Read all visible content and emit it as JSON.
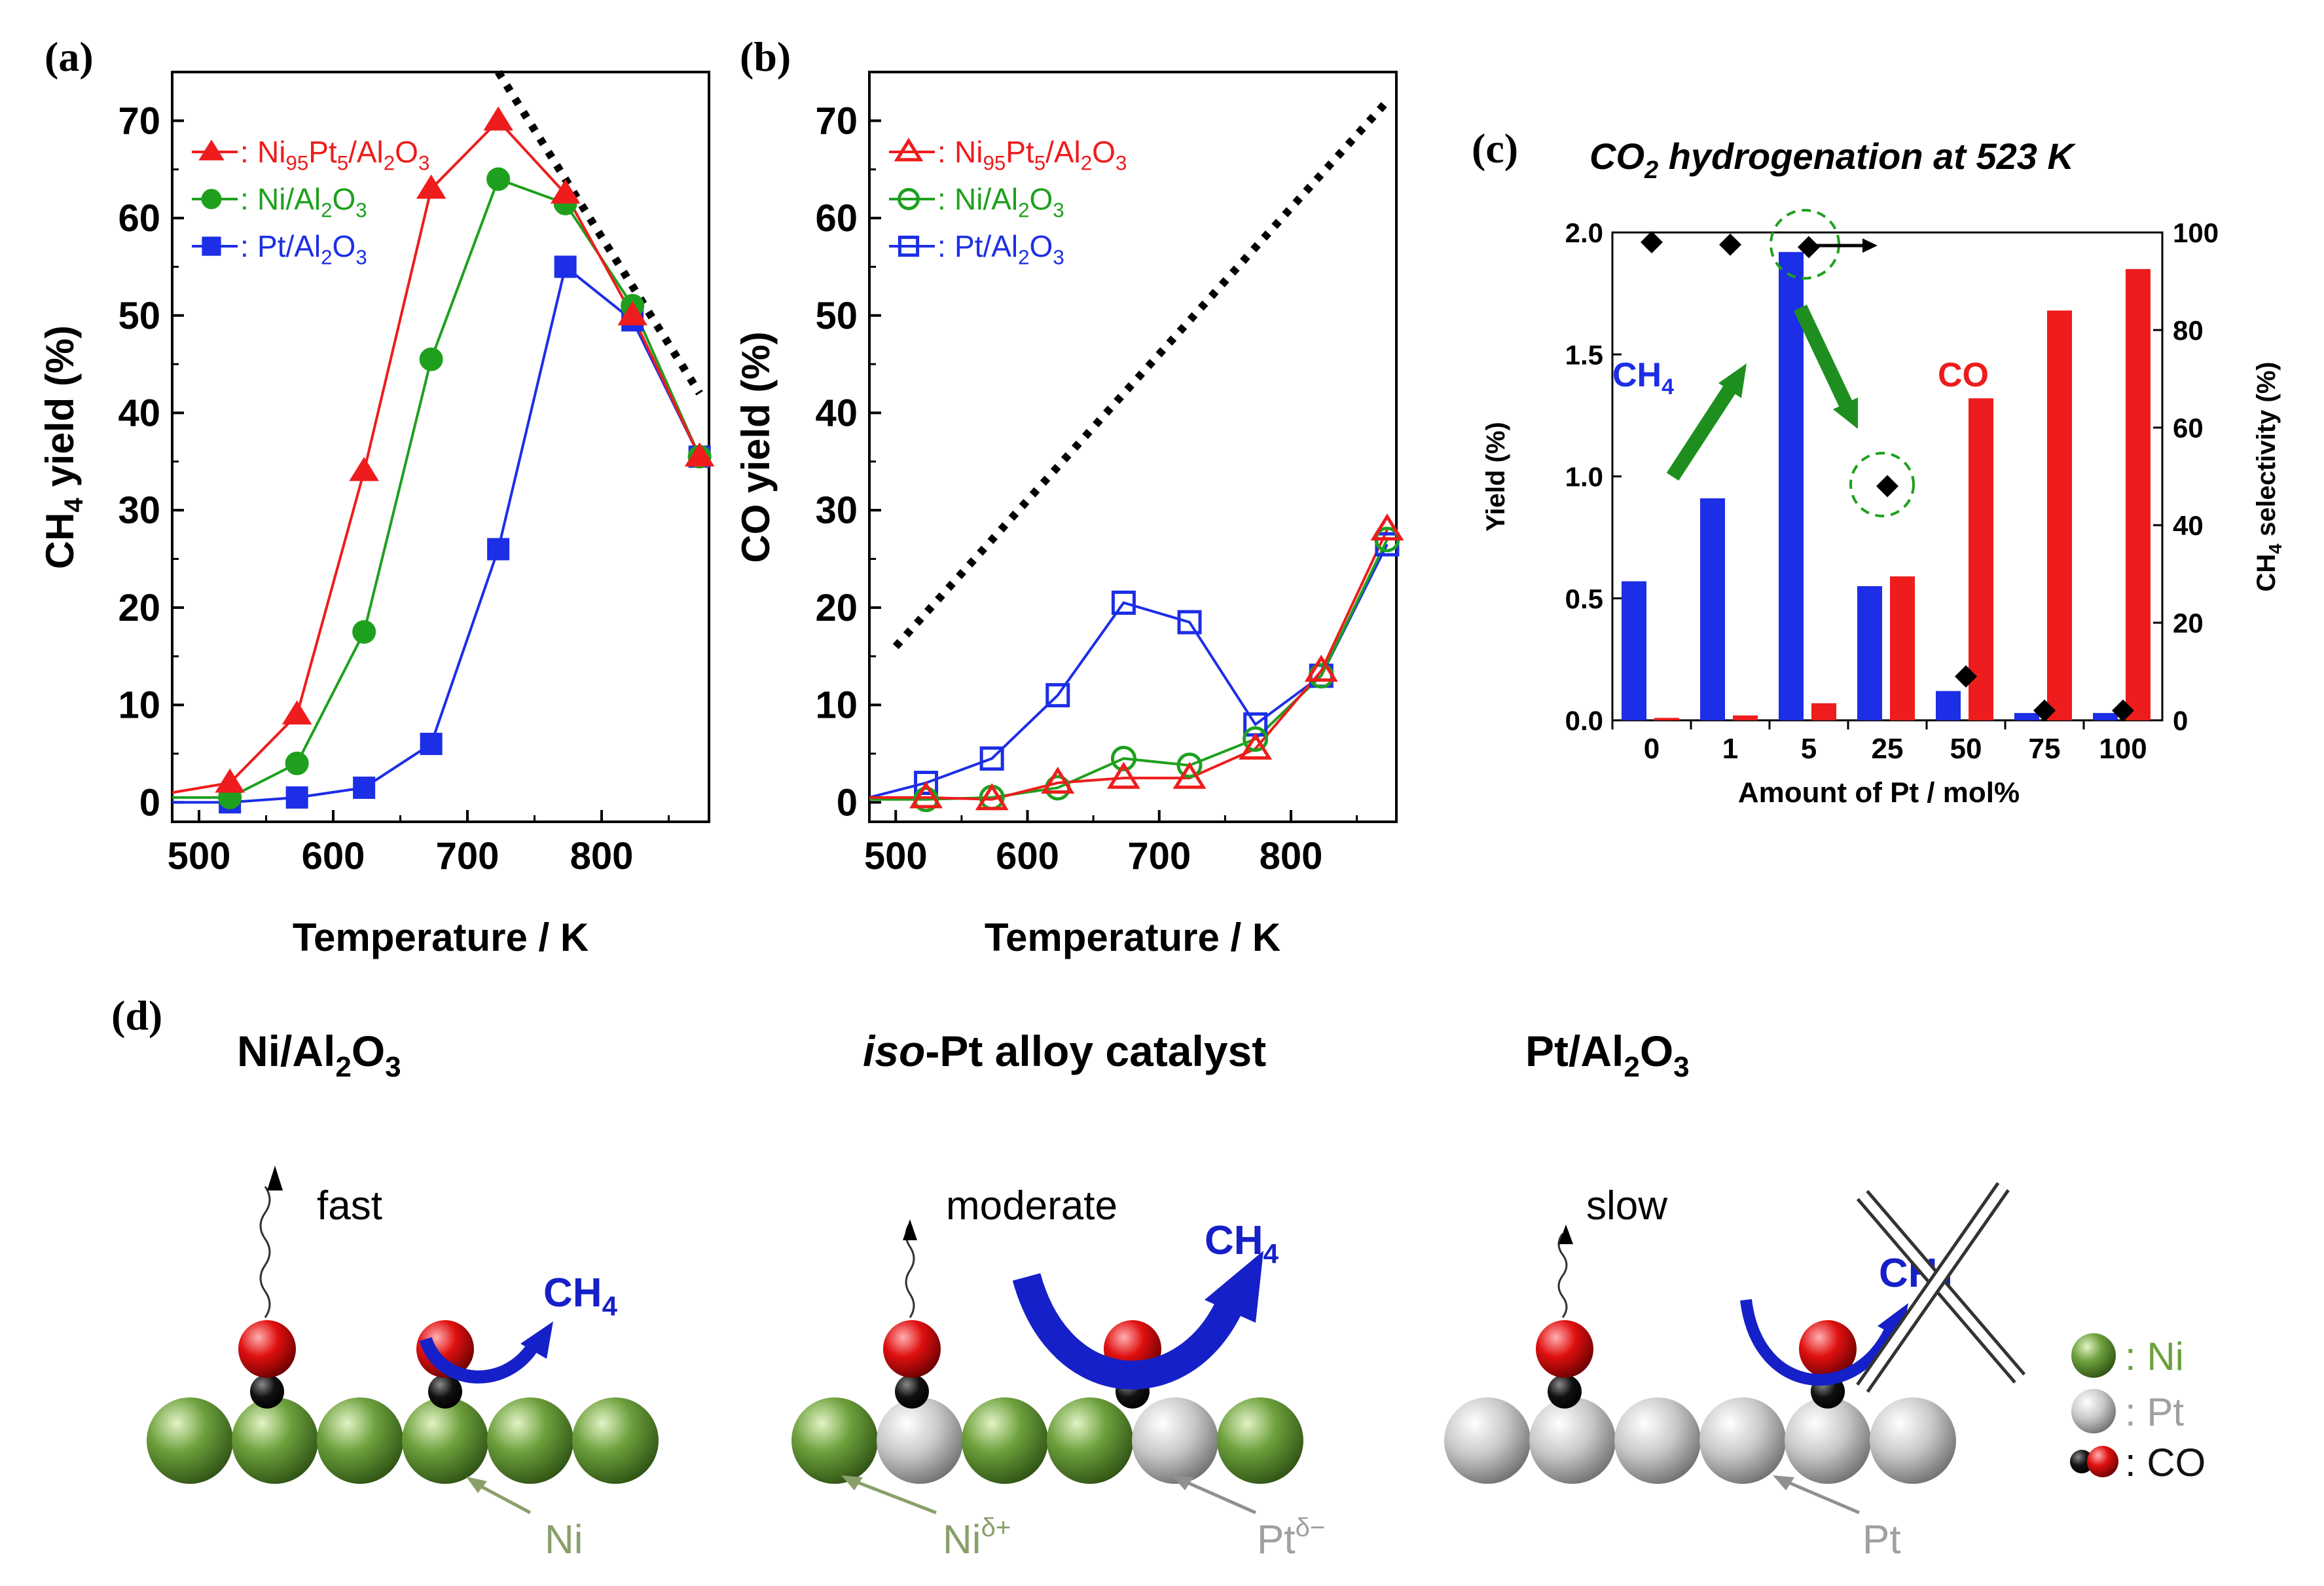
{
  "panel_labels": {
    "a": "(a)",
    "b": "(b)",
    "c": "(c)",
    "d": "(d)"
  },
  "colors": {
    "red": "#ee1c1c",
    "green": "#1ea01e",
    "blue": "#1c2ee6",
    "black": "#111111",
    "ni_bead": "#6da03c",
    "pt_bead": "#c8c8c8"
  },
  "chart_data": [
    {
      "id": "a",
      "type": "line",
      "ylabel_main": "CH",
      "ylabel_sub": "4",
      "ylabel_tail": " yield (%)",
      "xlabel": "Temperature / K",
      "xlim": [
        480,
        880
      ],
      "ylim": [
        -2,
        75
      ],
      "xticks": [
        500,
        600,
        700,
        800
      ],
      "yticks": [
        0,
        10,
        20,
        30,
        40,
        50,
        60,
        70
      ],
      "legend_position": "top-left",
      "series": [
        {
          "name": "Ni95Pt5/Al2O3",
          "marker": "triangle-filled",
          "color": "#ee1c1c",
          "x": [
            523,
            573,
            623,
            673,
            723,
            773,
            823,
            873
          ],
          "y": [
            2,
            9,
            34,
            63,
            70,
            62.5,
            50,
            35.5
          ]
        },
        {
          "name": "Ni/Al2O3",
          "marker": "circle-filled",
          "color": "#1ea01e",
          "x": [
            523,
            573,
            623,
            673,
            723,
            773,
            823,
            873
          ],
          "y": [
            0.5,
            4,
            17.5,
            45.5,
            64,
            61.5,
            51,
            35.5
          ]
        },
        {
          "name": "Pt/Al2O3",
          "marker": "square-filled",
          "color": "#1c2ee6",
          "x": [
            523,
            573,
            623,
            673,
            723,
            773,
            823,
            873
          ],
          "y": [
            0,
            0.5,
            1.5,
            6,
            26,
            55,
            49.5,
            35.5
          ]
        }
      ],
      "reference_line": {
        "x": [
          723,
          873
        ],
        "y": [
          75,
          42
        ]
      }
    },
    {
      "id": "b",
      "type": "line",
      "ylabel": "CO yield (%)",
      "xlabel": "Temperature / K",
      "xlim": [
        480,
        880
      ],
      "ylim": [
        -2,
        75
      ],
      "xticks": [
        500,
        600,
        700,
        800
      ],
      "yticks": [
        0,
        10,
        20,
        30,
        40,
        50,
        60,
        70
      ],
      "legend_position": "top-left",
      "series": [
        {
          "name": "Ni95Pt5/Al2O3",
          "marker": "triangle-open",
          "color": "#ee1c1c",
          "x": [
            523,
            573,
            623,
            673,
            723,
            773,
            823,
            873
          ],
          "y": [
            0.5,
            0.3,
            2,
            2.5,
            2.5,
            5.5,
            13.5,
            28
          ]
        },
        {
          "name": "Ni/Al2O3",
          "marker": "circle-open",
          "color": "#1ea01e",
          "x": [
            523,
            573,
            623,
            673,
            723,
            773,
            823,
            873
          ],
          "y": [
            0.3,
            0.5,
            1.5,
            4.5,
            3.8,
            6.5,
            13,
            27
          ]
        },
        {
          "name": "Pt/Al2O3",
          "marker": "square-open",
          "color": "#1c2ee6",
          "x": [
            523,
            573,
            623,
            673,
            723,
            773,
            823,
            873
          ],
          "y": [
            2,
            4.5,
            11,
            20.5,
            18.5,
            8,
            13,
            26.5
          ]
        }
      ],
      "reference_line": {
        "x": [
          500,
          873
        ],
        "y": [
          16,
          72
        ]
      }
    },
    {
      "id": "c",
      "type": "bar",
      "title_a": "CO",
      "title_sub": "2",
      "title_b": " hydrogenation at 523 K",
      "ylabel": "Yield (%)",
      "y2label_main": "CH",
      "y2label_sub": "4",
      "y2label_tail": " selectivity (%)",
      "xlabel": "Amount of Pt / mol%",
      "categories": [
        "0",
        "1",
        "5",
        "25",
        "50",
        "75",
        "100"
      ],
      "ylim": [
        0,
        2.0
      ],
      "yticks": [
        "0.0",
        "0.5",
        "1.0",
        "1.5",
        "2.0"
      ],
      "y2lim": [
        0,
        100
      ],
      "y2ticks": [
        "0",
        "20",
        "40",
        "60",
        "80",
        "100"
      ],
      "series": [
        {
          "name": "CH4",
          "color": "#1c2ee6",
          "values": [
            0.57,
            0.91,
            1.92,
            0.55,
            0.12,
            0.03,
            0.03
          ]
        },
        {
          "name": "CO",
          "color": "#ee1c1c",
          "values": [
            0.01,
            0.02,
            0.07,
            0.59,
            1.32,
            1.68,
            1.85
          ]
        }
      ],
      "selectivity": {
        "values": [
          98,
          97.5,
          97,
          48,
          9,
          2,
          2
        ]
      },
      "annotation_ch4": "CH",
      "annotation_ch4_sub": "4",
      "annotation_co": "CO"
    }
  ],
  "panel_d": {
    "col1_title_a": "Ni/Al",
    "col1_title_sub1": "2",
    "col1_title_b": "O",
    "col1_title_sub2": "3",
    "col2_title_em": "iso",
    "col2_title_rest": "-Pt alloy catalyst",
    "col3_title_a": "Pt/Al",
    "col3_title_sub1": "2",
    "col3_title_b": "O",
    "col3_title_sub2": "3",
    "rate1": "fast",
    "rate2": "moderate",
    "rate3": "slow",
    "ch4_main": "CH",
    "ch4_sub": "4",
    "surf1_label": "Ni",
    "surf2_label_ni": "Ni",
    "surf2_label_ni_sup": "δ+",
    "surf2_label_pt": "Pt",
    "surf2_label_pt_sup": "δ−",
    "surf3_label": "Pt",
    "legend_ni": ": Ni",
    "legend_pt": ": Pt",
    "legend_co": ": CO"
  }
}
